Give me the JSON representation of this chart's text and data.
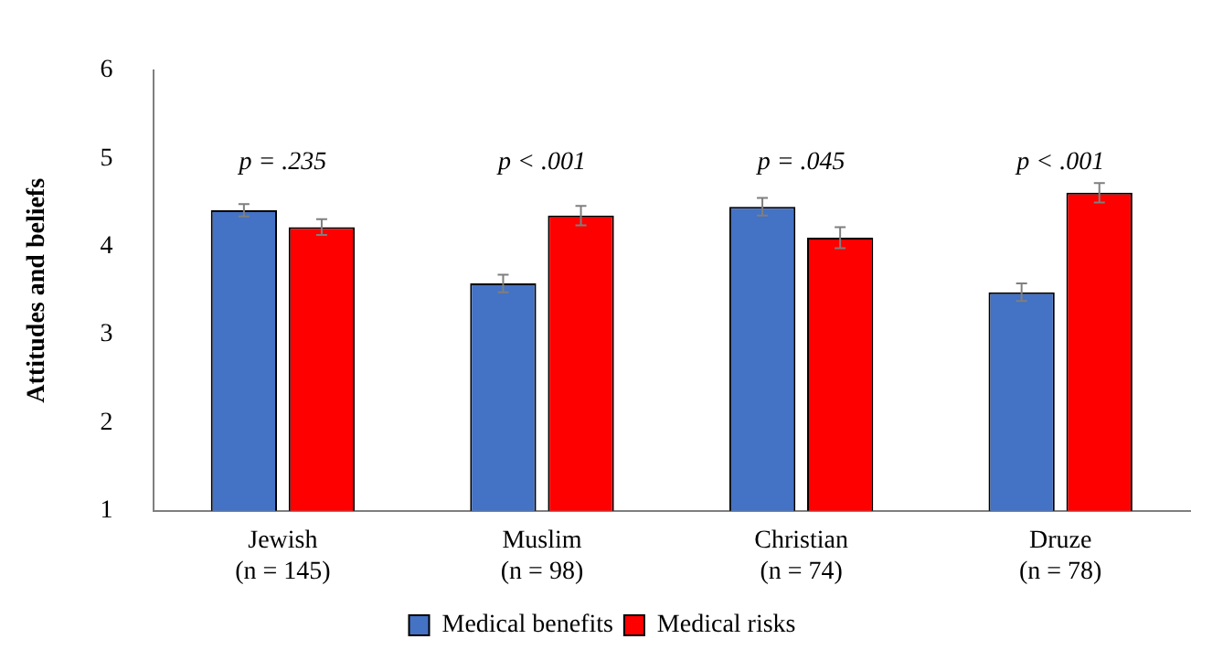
{
  "chart_data": {
    "type": "bar",
    "ylabel": "Attitudes and beliefs",
    "categories": [
      "Jewish\n(n = 145)",
      "Muslim\n(n = 98)",
      "Christian\n(n = 74)",
      "Druze\n(n = 78)"
    ],
    "series": [
      {
        "name": "Medical benefits",
        "color": "#4472c4",
        "values": [
          4.41,
          3.58,
          4.45,
          3.48
        ],
        "errors": [
          0.07,
          0.1,
          0.1,
          0.1
        ]
      },
      {
        "name": "Medical risks",
        "color": "#ff0000",
        "values": [
          4.22,
          4.35,
          4.1,
          4.61
        ],
        "errors": [
          0.09,
          0.11,
          0.12,
          0.11
        ]
      }
    ],
    "annotations": [
      "p = .235",
      "p < .001",
      "p = .045",
      "p < .001"
    ],
    "ylim": [
      1,
      6
    ],
    "yticks": [
      1,
      2,
      3,
      4,
      5,
      6
    ],
    "grid": false,
    "legend": "bottom"
  }
}
